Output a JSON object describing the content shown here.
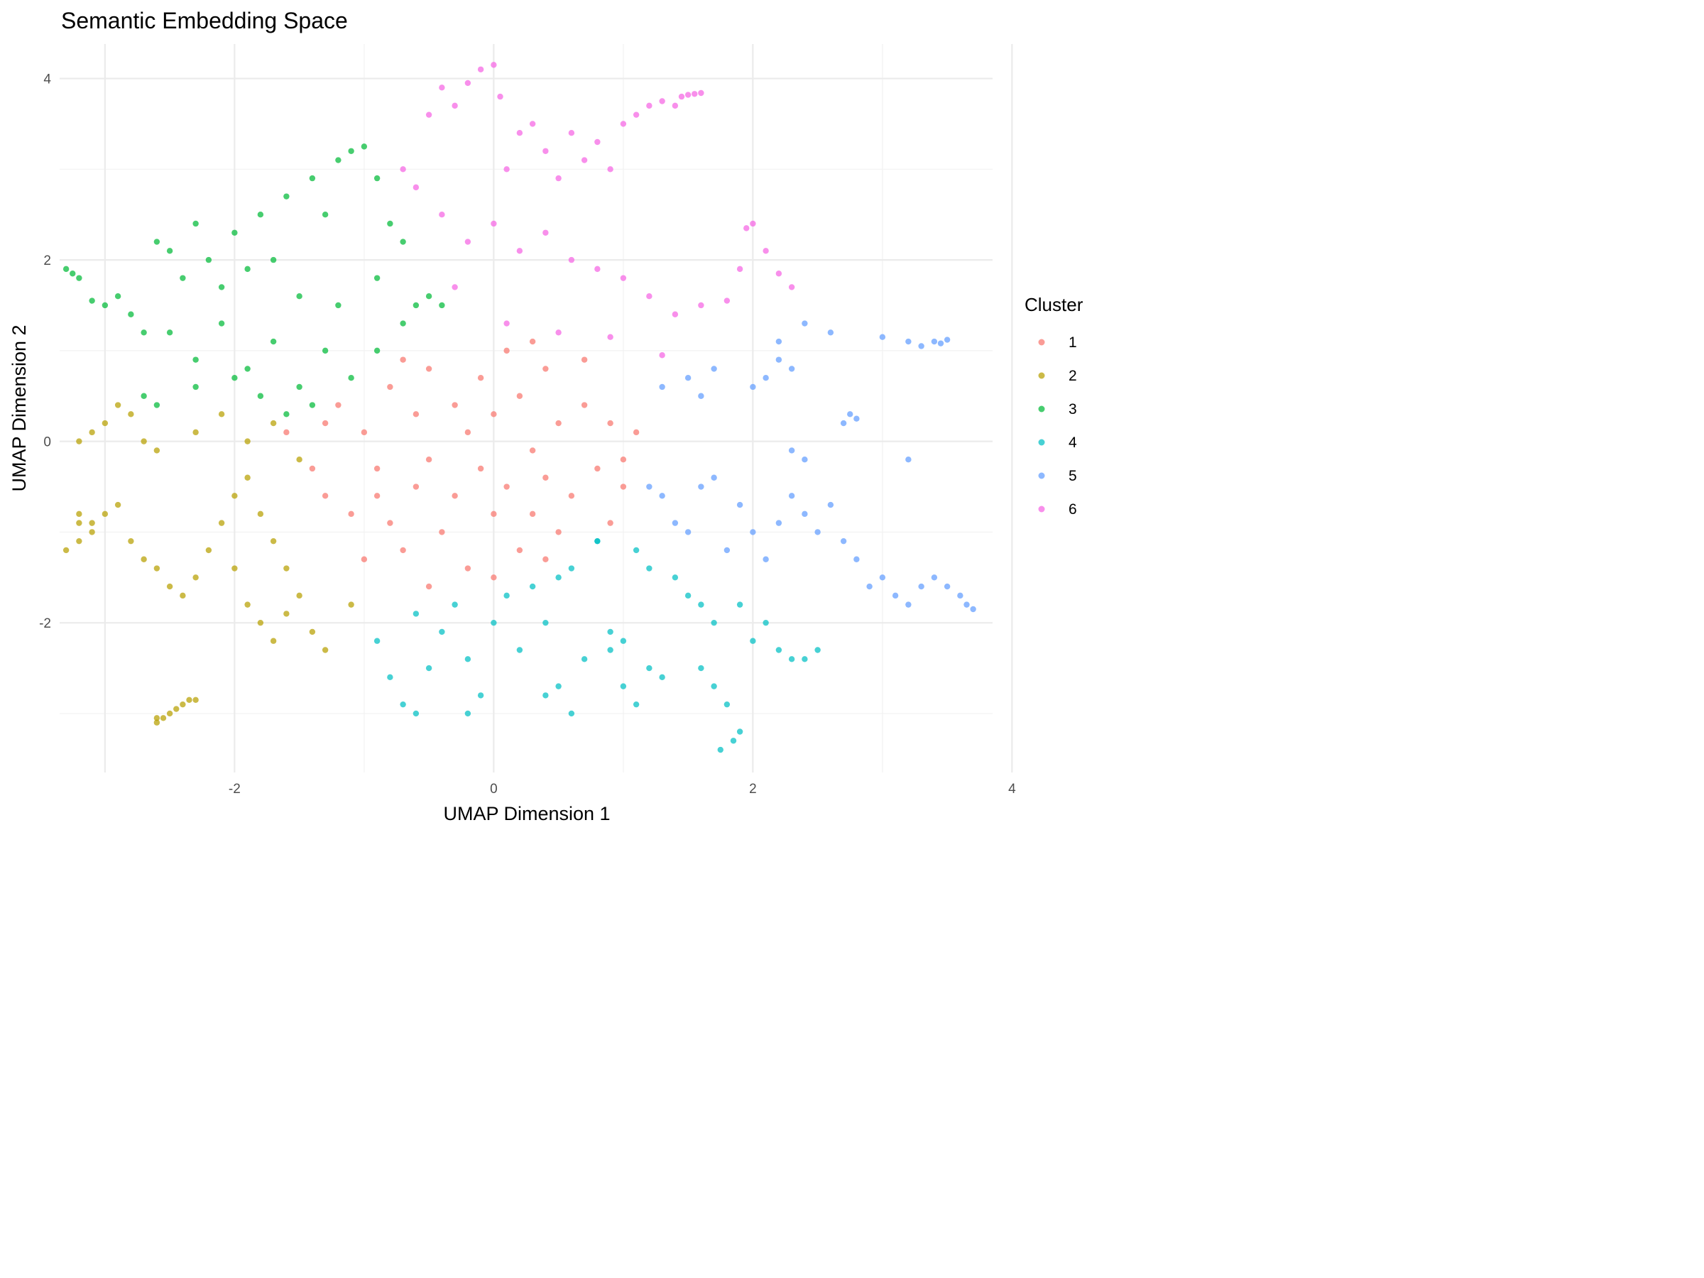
{
  "chart_data": {
    "type": "scatter",
    "title": "Semantic Embedding Space",
    "xlabel": "UMAP Dimension 1",
    "ylabel": "UMAP Dimension 2",
    "xlim": [
      -3.35,
      3.85
    ],
    "ylim": [
      -3.65,
      4.38
    ],
    "xticks": [
      -2,
      0,
      2,
      4
    ],
    "yticks": [
      -2,
      0,
      2,
      4
    ],
    "grid": true,
    "legend": {
      "title": "Cluster",
      "position": "right"
    },
    "series": [
      {
        "name": "1",
        "color": "#F8766D",
        "points": [
          [
            -1.6,
            0.1
          ],
          [
            -1.4,
            -0.3
          ],
          [
            -1.3,
            -0.6
          ],
          [
            -1.2,
            0.4
          ],
          [
            -1.1,
            -0.8
          ],
          [
            -1.0,
            0.1
          ],
          [
            -0.9,
            -0.3
          ],
          [
            -0.8,
            0.6
          ],
          [
            -0.8,
            -0.9
          ],
          [
            -0.7,
            -1.2
          ],
          [
            -0.6,
            0.3
          ],
          [
            -0.6,
            -0.5
          ],
          [
            -0.5,
            0.8
          ],
          [
            -0.5,
            -0.2
          ],
          [
            -0.4,
            -1.0
          ],
          [
            -0.3,
            0.4
          ],
          [
            -0.3,
            -0.6
          ],
          [
            -0.2,
            0.1
          ],
          [
            -0.2,
            -1.4
          ],
          [
            -0.1,
            0.7
          ],
          [
            -0.1,
            -0.3
          ],
          [
            0.0,
            -0.8
          ],
          [
            0.0,
            0.3
          ],
          [
            0.1,
            1.0
          ],
          [
            0.1,
            -0.5
          ],
          [
            0.2,
            -1.2
          ],
          [
            0.2,
            0.5
          ],
          [
            0.3,
            -0.1
          ],
          [
            0.3,
            -0.8
          ],
          [
            0.4,
            0.8
          ],
          [
            0.4,
            -0.4
          ],
          [
            0.5,
            0.2
          ],
          [
            0.5,
            -1.0
          ],
          [
            0.6,
            -0.6
          ],
          [
            0.7,
            0.4
          ],
          [
            0.8,
            -0.3
          ],
          [
            0.9,
            -0.9
          ],
          [
            0.9,
            0.2
          ],
          [
            1.0,
            -0.5
          ],
          [
            1.1,
            0.1
          ],
          [
            -1.0,
            -1.3
          ],
          [
            -0.5,
            -1.6
          ],
          [
            0.0,
            -1.5
          ],
          [
            0.4,
            -1.3
          ],
          [
            -0.7,
            0.9
          ],
          [
            0.3,
            1.1
          ],
          [
            -1.3,
            0.2
          ],
          [
            0.7,
            0.9
          ],
          [
            1.0,
            -0.2
          ],
          [
            -0.9,
            -0.6
          ]
        ]
      },
      {
        "name": "2",
        "color": "#B79F00",
        "points": [
          [
            -3.2,
            0.0
          ],
          [
            -3.1,
            0.1
          ],
          [
            -3.0,
            0.2
          ],
          [
            -2.9,
            0.4
          ],
          [
            -2.8,
            0.3
          ],
          [
            -2.7,
            0.0
          ],
          [
            -2.6,
            -0.1
          ],
          [
            -3.2,
            -0.8
          ],
          [
            -3.2,
            -0.9
          ],
          [
            -3.1,
            -1.0
          ],
          [
            -3.2,
            -1.1
          ],
          [
            -3.3,
            -1.2
          ],
          [
            -3.1,
            -0.9
          ],
          [
            -3.0,
            -0.8
          ],
          [
            -2.9,
            -0.7
          ],
          [
            -2.8,
            -1.1
          ],
          [
            -2.7,
            -1.3
          ],
          [
            -2.6,
            -1.4
          ],
          [
            -2.5,
            -1.6
          ],
          [
            -2.4,
            -1.7
          ],
          [
            -2.3,
            -1.5
          ],
          [
            -2.2,
            -1.2
          ],
          [
            -2.1,
            -0.9
          ],
          [
            -2.0,
            -0.6
          ],
          [
            -1.9,
            -0.4
          ],
          [
            -1.8,
            -0.8
          ],
          [
            -1.7,
            -1.1
          ],
          [
            -1.6,
            -1.4
          ],
          [
            -1.5,
            -1.7
          ],
          [
            -1.9,
            -1.8
          ],
          [
            -1.8,
            -2.0
          ],
          [
            -1.7,
            -2.2
          ],
          [
            -1.6,
            -1.9
          ],
          [
            -1.4,
            -2.1
          ],
          [
            -1.3,
            -2.3
          ],
          [
            -2.3,
            0.1
          ],
          [
            -2.1,
            0.3
          ],
          [
            -1.9,
            0.0
          ],
          [
            -1.7,
            0.2
          ],
          [
            -1.5,
            -0.2
          ],
          [
            -2.6,
            -3.1
          ],
          [
            -2.55,
            -3.05
          ],
          [
            -2.5,
            -3.0
          ],
          [
            -2.45,
            -2.95
          ],
          [
            -2.4,
            -2.9
          ],
          [
            -2.35,
            -2.85
          ],
          [
            -2.3,
            -2.85
          ],
          [
            -2.6,
            -3.05
          ],
          [
            -2.0,
            -1.4
          ],
          [
            -1.1,
            -1.8
          ]
        ]
      },
      {
        "name": "3",
        "color": "#00BA38",
        "points": [
          [
            -3.3,
            1.9
          ],
          [
            -3.25,
            1.85
          ],
          [
            -3.2,
            1.8
          ],
          [
            -3.1,
            1.55
          ],
          [
            -3.0,
            1.5
          ],
          [
            -2.9,
            1.6
          ],
          [
            -2.8,
            1.4
          ],
          [
            -2.7,
            1.2
          ],
          [
            -2.6,
            2.2
          ],
          [
            -2.5,
            2.1
          ],
          [
            -2.4,
            1.8
          ],
          [
            -2.3,
            2.4
          ],
          [
            -2.2,
            2.0
          ],
          [
            -2.1,
            1.7
          ],
          [
            -2.0,
            2.3
          ],
          [
            -1.9,
            1.9
          ],
          [
            -1.8,
            2.5
          ],
          [
            -1.7,
            2.0
          ],
          [
            -1.6,
            2.7
          ],
          [
            -1.5,
            1.6
          ],
          [
            -1.4,
            2.9
          ],
          [
            -1.3,
            2.5
          ],
          [
            -1.2,
            3.1
          ],
          [
            -1.1,
            3.2
          ],
          [
            -1.0,
            3.25
          ],
          [
            -0.9,
            2.9
          ],
          [
            -0.8,
            2.4
          ],
          [
            -0.7,
            2.2
          ],
          [
            -0.6,
            1.5
          ],
          [
            -0.5,
            1.6
          ],
          [
            -2.5,
            1.2
          ],
          [
            -2.3,
            0.9
          ],
          [
            -2.1,
            1.3
          ],
          [
            -1.9,
            0.8
          ],
          [
            -1.7,
            1.1
          ],
          [
            -1.5,
            0.6
          ],
          [
            -1.3,
            1.0
          ],
          [
            -1.1,
            0.7
          ],
          [
            -0.9,
            1.0
          ],
          [
            -1.4,
            0.4
          ],
          [
            -2.7,
            0.5
          ],
          [
            -2.6,
            0.4
          ],
          [
            -2.0,
            0.7
          ],
          [
            -1.8,
            0.5
          ],
          [
            -1.6,
            0.3
          ],
          [
            -1.2,
            1.5
          ],
          [
            -0.9,
            1.8
          ],
          [
            -0.7,
            1.3
          ],
          [
            -0.4,
            1.5
          ],
          [
            -2.3,
            0.6
          ]
        ]
      },
      {
        "name": "4",
        "color": "#00BFC4",
        "points": [
          [
            -0.9,
            -2.2
          ],
          [
            -0.8,
            -2.6
          ],
          [
            -0.7,
            -2.9
          ],
          [
            -0.6,
            -3.0
          ],
          [
            -0.5,
            -2.5
          ],
          [
            -0.4,
            -2.1
          ],
          [
            -0.3,
            -1.8
          ],
          [
            -0.2,
            -2.4
          ],
          [
            -0.1,
            -2.8
          ],
          [
            0.0,
            -2.0
          ],
          [
            0.1,
            -1.7
          ],
          [
            0.2,
            -2.3
          ],
          [
            0.3,
            -1.6
          ],
          [
            0.4,
            -2.0
          ],
          [
            0.5,
            -2.7
          ],
          [
            0.6,
            -3.0
          ],
          [
            0.7,
            -2.4
          ],
          [
            0.8,
            -1.1
          ],
          [
            0.9,
            -2.1
          ],
          [
            1.0,
            -2.7
          ],
          [
            1.1,
            -2.9
          ],
          [
            1.2,
            -2.5
          ],
          [
            1.3,
            -2.6
          ],
          [
            1.4,
            -1.5
          ],
          [
            1.5,
            -1.7
          ],
          [
            1.6,
            -1.8
          ],
          [
            1.7,
            -2.0
          ],
          [
            1.8,
            -2.9
          ],
          [
            1.9,
            -3.2
          ],
          [
            1.85,
            -3.3
          ],
          [
            1.75,
            -3.4
          ],
          [
            2.0,
            -2.2
          ],
          [
            2.1,
            -2.0
          ],
          [
            2.2,
            -2.3
          ],
          [
            2.3,
            -2.4
          ],
          [
            2.4,
            -2.4
          ],
          [
            2.5,
            -2.3
          ],
          [
            -0.6,
            -1.9
          ],
          [
            0.5,
            -1.5
          ],
          [
            0.6,
            -1.4
          ],
          [
            0.8,
            -1.1
          ],
          [
            1.1,
            -1.2
          ],
          [
            1.2,
            -1.4
          ],
          [
            1.0,
            -2.2
          ],
          [
            0.9,
            -2.3
          ],
          [
            -0.2,
            -3.0
          ],
          [
            0.4,
            -2.8
          ],
          [
            1.6,
            -2.5
          ],
          [
            1.7,
            -2.7
          ],
          [
            1.9,
            -1.8
          ]
        ]
      },
      {
        "name": "5",
        "color": "#619CFF",
        "points": [
          [
            1.2,
            -0.5
          ],
          [
            1.3,
            -0.6
          ],
          [
            1.4,
            -0.9
          ],
          [
            1.5,
            -1.0
          ],
          [
            1.6,
            -0.5
          ],
          [
            1.7,
            -0.4
          ],
          [
            1.8,
            -1.2
          ],
          [
            1.9,
            -0.7
          ],
          [
            2.0,
            -1.0
          ],
          [
            2.1,
            -1.3
          ],
          [
            2.2,
            -0.9
          ],
          [
            2.3,
            -0.6
          ],
          [
            2.4,
            -0.8
          ],
          [
            2.5,
            -1.0
          ],
          [
            2.6,
            -0.7
          ],
          [
            2.7,
            -1.1
          ],
          [
            2.8,
            -1.3
          ],
          [
            2.9,
            -1.6
          ],
          [
            3.0,
            -1.5
          ],
          [
            3.1,
            -1.7
          ],
          [
            3.2,
            -1.8
          ],
          [
            3.3,
            -1.6
          ],
          [
            3.4,
            -1.5
          ],
          [
            3.5,
            -1.6
          ],
          [
            3.6,
            -1.7
          ],
          [
            3.65,
            -1.8
          ],
          [
            3.7,
            -1.85
          ],
          [
            2.3,
            -0.1
          ],
          [
            2.4,
            -0.2
          ],
          [
            3.2,
            -0.2
          ],
          [
            1.3,
            0.6
          ],
          [
            1.5,
            0.7
          ],
          [
            1.6,
            0.5
          ],
          [
            1.7,
            0.8
          ],
          [
            2.0,
            0.6
          ],
          [
            2.1,
            0.7
          ],
          [
            2.2,
            0.9
          ],
          [
            2.3,
            0.8
          ],
          [
            2.7,
            0.2
          ],
          [
            2.75,
            0.3
          ],
          [
            2.8,
            0.25
          ],
          [
            2.2,
            1.1
          ],
          [
            2.6,
            1.2
          ],
          [
            3.0,
            1.15
          ],
          [
            3.2,
            1.1
          ],
          [
            3.3,
            1.05
          ],
          [
            3.4,
            1.1
          ],
          [
            3.45,
            1.08
          ],
          [
            3.5,
            1.12
          ],
          [
            2.4,
            1.3
          ]
        ]
      },
      {
        "name": "6",
        "color": "#F564E3",
        "points": [
          [
            -0.7,
            3.0
          ],
          [
            -0.5,
            3.6
          ],
          [
            -0.4,
            3.9
          ],
          [
            -0.3,
            3.7
          ],
          [
            -0.2,
            3.95
          ],
          [
            -0.1,
            4.1
          ],
          [
            0.0,
            4.15
          ],
          [
            0.05,
            3.8
          ],
          [
            0.1,
            3.0
          ],
          [
            0.2,
            3.4
          ],
          [
            0.3,
            3.5
          ],
          [
            0.4,
            3.2
          ],
          [
            0.5,
            2.9
          ],
          [
            0.6,
            3.4
          ],
          [
            0.7,
            3.1
          ],
          [
            0.8,
            3.3
          ],
          [
            0.9,
            3.0
          ],
          [
            1.0,
            3.5
          ],
          [
            1.1,
            3.6
          ],
          [
            1.2,
            3.7
          ],
          [
            1.3,
            3.75
          ],
          [
            1.4,
            3.7
          ],
          [
            1.45,
            3.8
          ],
          [
            1.5,
            3.82
          ],
          [
            1.55,
            3.83
          ],
          [
            1.6,
            3.84
          ],
          [
            -0.6,
            2.8
          ],
          [
            -0.4,
            2.5
          ],
          [
            -0.2,
            2.2
          ],
          [
            0.0,
            2.4
          ],
          [
            0.2,
            2.1
          ],
          [
            0.4,
            2.3
          ],
          [
            0.6,
            2.0
          ],
          [
            0.8,
            1.9
          ],
          [
            1.0,
            1.8
          ],
          [
            1.2,
            1.6
          ],
          [
            1.4,
            1.4
          ],
          [
            1.6,
            1.5
          ],
          [
            1.8,
            1.55
          ],
          [
            1.9,
            1.9
          ],
          [
            1.95,
            2.35
          ],
          [
            2.0,
            2.4
          ],
          [
            2.1,
            2.1
          ],
          [
            2.2,
            1.85
          ],
          [
            2.3,
            1.7
          ],
          [
            0.1,
            1.3
          ],
          [
            0.5,
            1.2
          ],
          [
            0.9,
            1.15
          ],
          [
            1.3,
            0.95
          ],
          [
            -0.3,
            1.7
          ]
        ]
      }
    ]
  }
}
